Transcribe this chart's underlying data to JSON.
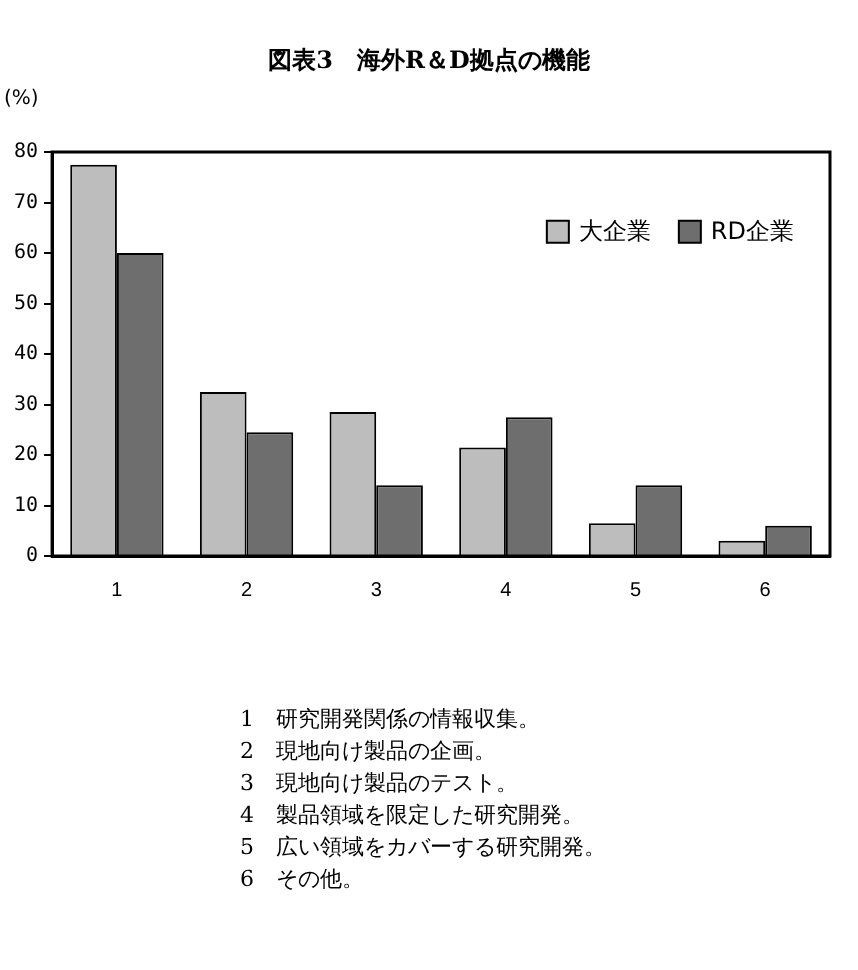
{
  "chart_data": {
    "type": "bar",
    "title": "図表3　海外R＆D拠点の機能",
    "ylabel": "(%)",
    "categories": [
      "1",
      "2",
      "3",
      "4",
      "5",
      "6"
    ],
    "series": [
      {
        "name": "大企業",
        "color": "#bdbdbd",
        "values": [
          77.5,
          32.5,
          28.5,
          21.5,
          6.5,
          3
        ]
      },
      {
        "name": "RD企業",
        "color": "#6e6e6e",
        "values": [
          60,
          24.5,
          14,
          27.5,
          14,
          6
        ]
      }
    ],
    "ylim": [
      0,
      80
    ],
    "yticks": [
      0,
      10,
      20,
      30,
      40,
      50,
      60,
      70,
      80
    ],
    "grid": false,
    "legend": "top right",
    "annotations": [
      "1　研究開発関係の情報収集。",
      "2　現地向け製品の企画。",
      "3　現地向け製品のテスト。",
      "4　製品領域を限定した研究開発。",
      "5　広い領域をカバーする研究開発。",
      "6　その他。"
    ]
  }
}
